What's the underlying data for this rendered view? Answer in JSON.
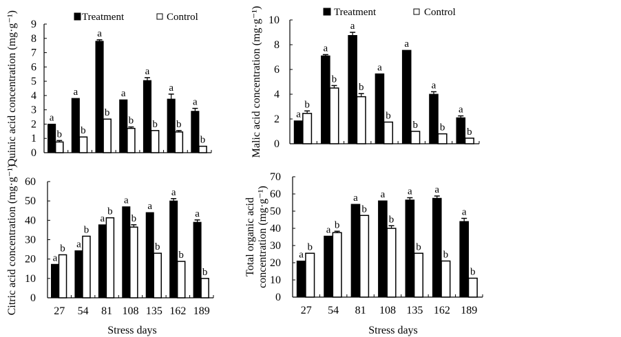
{
  "figure": {
    "legend": {
      "treatment_label": "Treatment",
      "control_label": "Control",
      "treatment_color": "#000000",
      "control_color": "#ffffff"
    },
    "xlabel": "Stress days"
  },
  "chart_data": [
    {
      "type": "bar",
      "panel": "top-left",
      "title": "",
      "ylabel": "Quinic acid concentration (mg·g⁻¹)",
      "xlabel": "",
      "ylim": [
        0,
        9
      ],
      "yticks": [
        0,
        1,
        2,
        3,
        4,
        5,
        6,
        7,
        8,
        9
      ],
      "categories": [
        "27",
        "54",
        "81",
        "108",
        "135",
        "162",
        "189"
      ],
      "show_xtick_labels": false,
      "legend": "top",
      "series": [
        {
          "name": "Treatment",
          "values": [
            2.0,
            3.8,
            7.8,
            3.7,
            5.05,
            3.75,
            2.9
          ],
          "errors": [
            0.0,
            0.0,
            0.1,
            0.0,
            0.2,
            0.35,
            0.2
          ],
          "letters": [
            "a",
            "a",
            "a",
            "a",
            "a",
            "a",
            "a"
          ]
        },
        {
          "name": "Control",
          "values": [
            0.75,
            1.1,
            2.35,
            1.7,
            1.55,
            1.45,
            0.45
          ],
          "errors": [
            0.1,
            0.0,
            0.0,
            0.1,
            0.0,
            0.1,
            0.0
          ],
          "letters": [
            "b",
            "b",
            "b",
            "b",
            "b",
            "b",
            "b"
          ]
        }
      ]
    },
    {
      "type": "bar",
      "panel": "top-right",
      "title": "",
      "ylabel": "Malic acid concentration (mg·g⁻¹)",
      "xlabel": "",
      "ylim": [
        0,
        10
      ],
      "yticks": [
        0,
        2,
        4,
        6,
        8,
        10
      ],
      "categories": [
        "27",
        "54",
        "81",
        "108",
        "135",
        "162",
        "189"
      ],
      "show_xtick_labels": false,
      "legend": "top",
      "series": [
        {
          "name": "Treatment",
          "values": [
            1.85,
            7.1,
            8.75,
            5.65,
            7.55,
            4.0,
            2.1
          ],
          "errors": [
            0.0,
            0.1,
            0.25,
            0.0,
            0.0,
            0.2,
            0.15
          ],
          "letters": [
            "a",
            "a",
            "a",
            "a",
            "a",
            "a",
            "a"
          ]
        },
        {
          "name": "Control",
          "values": [
            2.45,
            4.5,
            3.8,
            1.75,
            1.0,
            0.8,
            0.45
          ],
          "errors": [
            0.2,
            0.2,
            0.25,
            0.0,
            0.0,
            0.0,
            0.0
          ],
          "letters": [
            "b",
            "b",
            "b",
            "b",
            "b",
            "b",
            "b"
          ]
        }
      ]
    },
    {
      "type": "bar",
      "panel": "bottom-left",
      "title": "",
      "ylabel": "Citric acid concentration (mg·g⁻¹)",
      "xlabel": "Stress days",
      "ylim": [
        0,
        60
      ],
      "yticks": [
        0,
        10,
        20,
        30,
        40,
        50,
        60
      ],
      "categories": [
        "27",
        "54",
        "81",
        "108",
        "135",
        "162",
        "189"
      ],
      "show_xtick_labels": true,
      "legend": "none",
      "series": [
        {
          "name": "Treatment",
          "values": [
            17.3,
            24.3,
            37.7,
            47.0,
            44.0,
            50.0,
            39.0
          ],
          "errors": [
            0.0,
            0.0,
            0.0,
            0.0,
            0.0,
            1.2,
            1.2
          ],
          "letters": [
            "a",
            "a",
            "a",
            "a",
            "a",
            "a",
            "a"
          ]
        },
        {
          "name": "Control",
          "values": [
            22.2,
            31.8,
            41.3,
            36.5,
            23.0,
            18.8,
            10.0
          ],
          "errors": [
            0.0,
            0.0,
            0.0,
            1.2,
            0.0,
            0.0,
            0.0
          ],
          "letters": [
            "b",
            "b",
            "b",
            "b",
            "b",
            "b",
            "b"
          ]
        }
      ]
    },
    {
      "type": "bar",
      "panel": "bottom-right",
      "title": "",
      "ylabel": "Total organic  acid concentration (mg·g⁻¹)",
      "xlabel": "Stress days",
      "ylim": [
        0,
        70
      ],
      "yticks": [
        0,
        10,
        20,
        30,
        40,
        50,
        60,
        70
      ],
      "categories": [
        "27",
        "54",
        "81",
        "108",
        "135",
        "162",
        "189"
      ],
      "show_xtick_labels": true,
      "legend": "none",
      "series": [
        {
          "name": "Treatment",
          "values": [
            21.0,
            35.5,
            54.0,
            56.0,
            56.5,
            57.5,
            44.0
          ],
          "errors": [
            0.0,
            0.0,
            0.0,
            0.0,
            1.3,
            1.3,
            1.8
          ],
          "letters": [
            "a",
            "a",
            "a",
            "a",
            "a",
            "a",
            "a"
          ]
        },
        {
          "name": "Control",
          "values": [
            25.5,
            37.5,
            47.5,
            40.0,
            25.5,
            21.0,
            11.0
          ],
          "errors": [
            0.0,
            0.8,
            0.0,
            1.5,
            0.0,
            0.0,
            0.0
          ],
          "letters": [
            "b",
            "b",
            "b",
            "b",
            "b",
            "b",
            "b"
          ]
        }
      ]
    }
  ]
}
